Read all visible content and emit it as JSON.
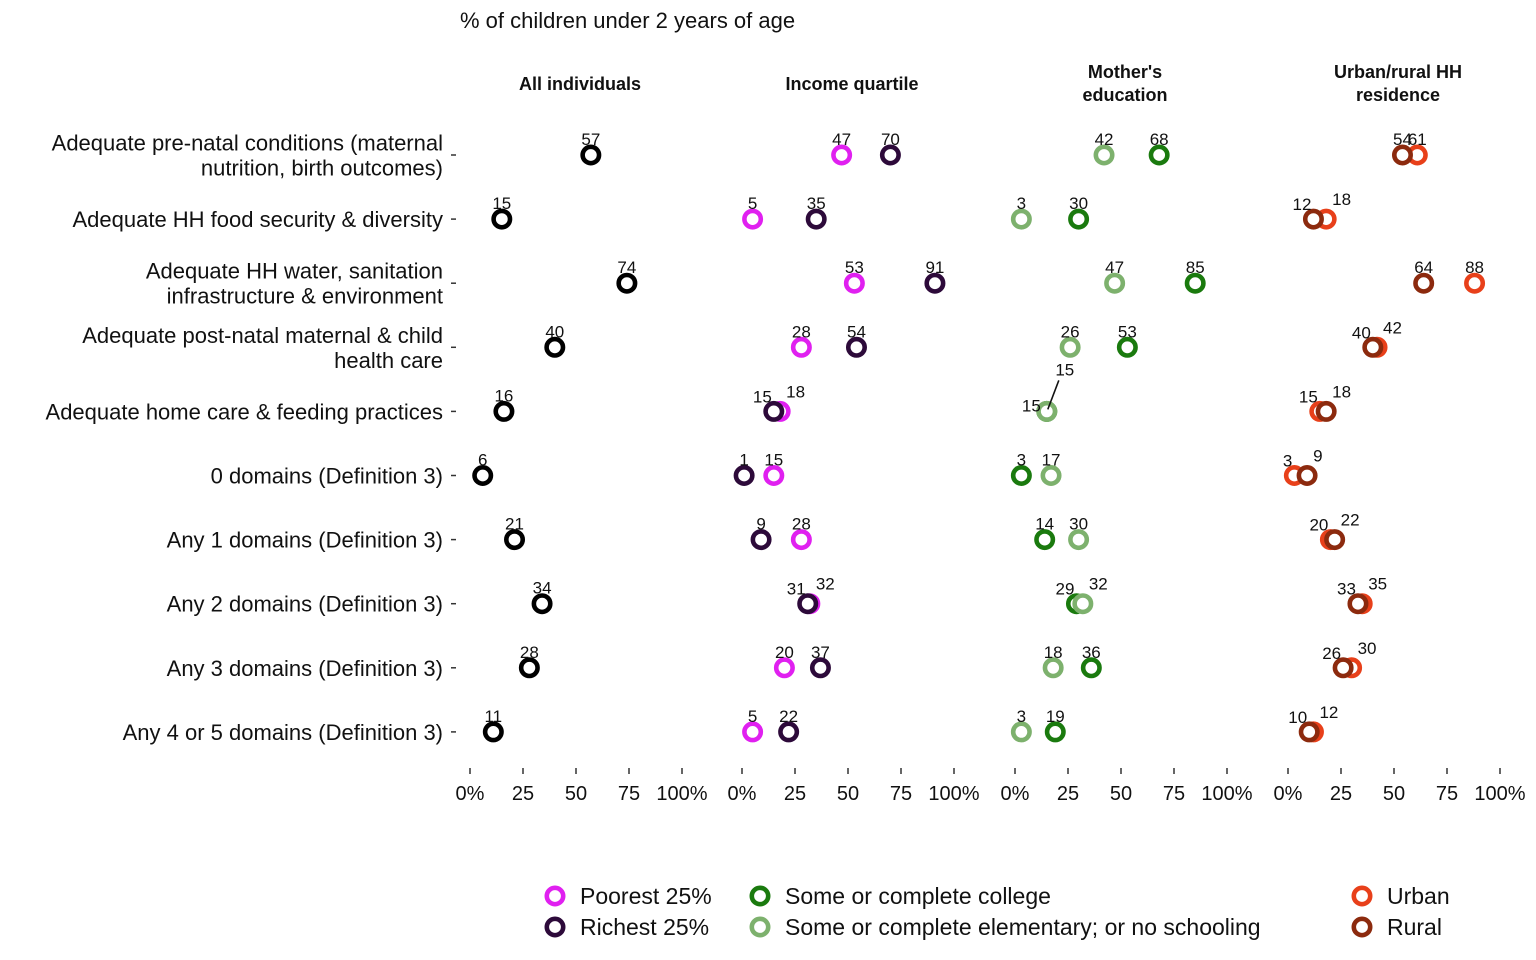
{
  "chart_data": {
    "type": "dot",
    "title": "% of children under 2 years of age",
    "rows": [
      "Adequate pre-natal conditions (maternal\nnutrition, birth outcomes)",
      "Adequate HH food security & diversity",
      "Adequate HH water, sanitation\ninfrastructure & environment",
      "Adequate post-natal maternal & child\nhealth care",
      "Adequate home care & feeding practices",
      "0 domains (Definition 3)",
      "Any 1 domains (Definition 3)",
      "Any 2 domains (Definition 3)",
      "Any 3 domains (Definition 3)",
      "Any 4 or 5 domains (Definition 3)"
    ],
    "xlim": [
      0,
      100
    ],
    "x_ticks": [
      "0%",
      "25",
      "50",
      "75",
      "100%"
    ],
    "panels": [
      {
        "title": "All individuals",
        "series": [
          {
            "name": "",
            "color": "#000000",
            "values": [
              57,
              15,
              74,
              40,
              16,
              6,
              21,
              34,
              28,
              11
            ]
          }
        ]
      },
      {
        "title": "Income quartile",
        "series": [
          {
            "name": "Poorest 25%",
            "color": "#E020F0",
            "values": [
              47,
              5,
              53,
              28,
              18,
              15,
              28,
              32,
              20,
              5
            ]
          },
          {
            "name": "Richest 25%",
            "color": "#2D0A3A",
            "values": [
              70,
              35,
              91,
              54,
              15,
              1,
              9,
              31,
              37,
              22
            ]
          }
        ]
      },
      {
        "title": "Mother's\neducation",
        "series": [
          {
            "name": "Some or complete college",
            "color": "#1A7A0E",
            "values": [
              68,
              30,
              85,
              53,
              15,
              3,
              14,
              29,
              36,
              19
            ]
          },
          {
            "name": "Some or complete elementary; or no schooling",
            "color": "#7DB16D",
            "values": [
              42,
              3,
              47,
              26,
              15,
              17,
              30,
              32,
              18,
              3
            ]
          }
        ]
      },
      {
        "title": "Urban/rural HH\nresidence",
        "series": [
          {
            "name": "Urban",
            "color": "#E8401A",
            "values": [
              61,
              18,
              88,
              42,
              15,
              3,
              20,
              35,
              30,
              12
            ]
          },
          {
            "name": "Rural",
            "color": "#8C2A0E",
            "values": [
              54,
              12,
              64,
              40,
              18,
              9,
              22,
              33,
              26,
              10
            ]
          }
        ]
      }
    ],
    "legend": {
      "placement": "bottom",
      "columns": [
        [
          {
            "label": "Poorest 25%",
            "color": "#E020F0"
          },
          {
            "label": "Richest 25%",
            "color": "#2D0A3A"
          }
        ],
        [
          {
            "label": "Some or complete college",
            "color": "#1A7A0E"
          },
          {
            "label": "Some or complete elementary; or no schooling",
            "color": "#7DB16D"
          }
        ],
        [
          {
            "label": "Urban",
            "color": "#E8401A"
          },
          {
            "label": "Rural",
            "color": "#8C2A0E"
          }
        ]
      ]
    },
    "grid": false
  }
}
